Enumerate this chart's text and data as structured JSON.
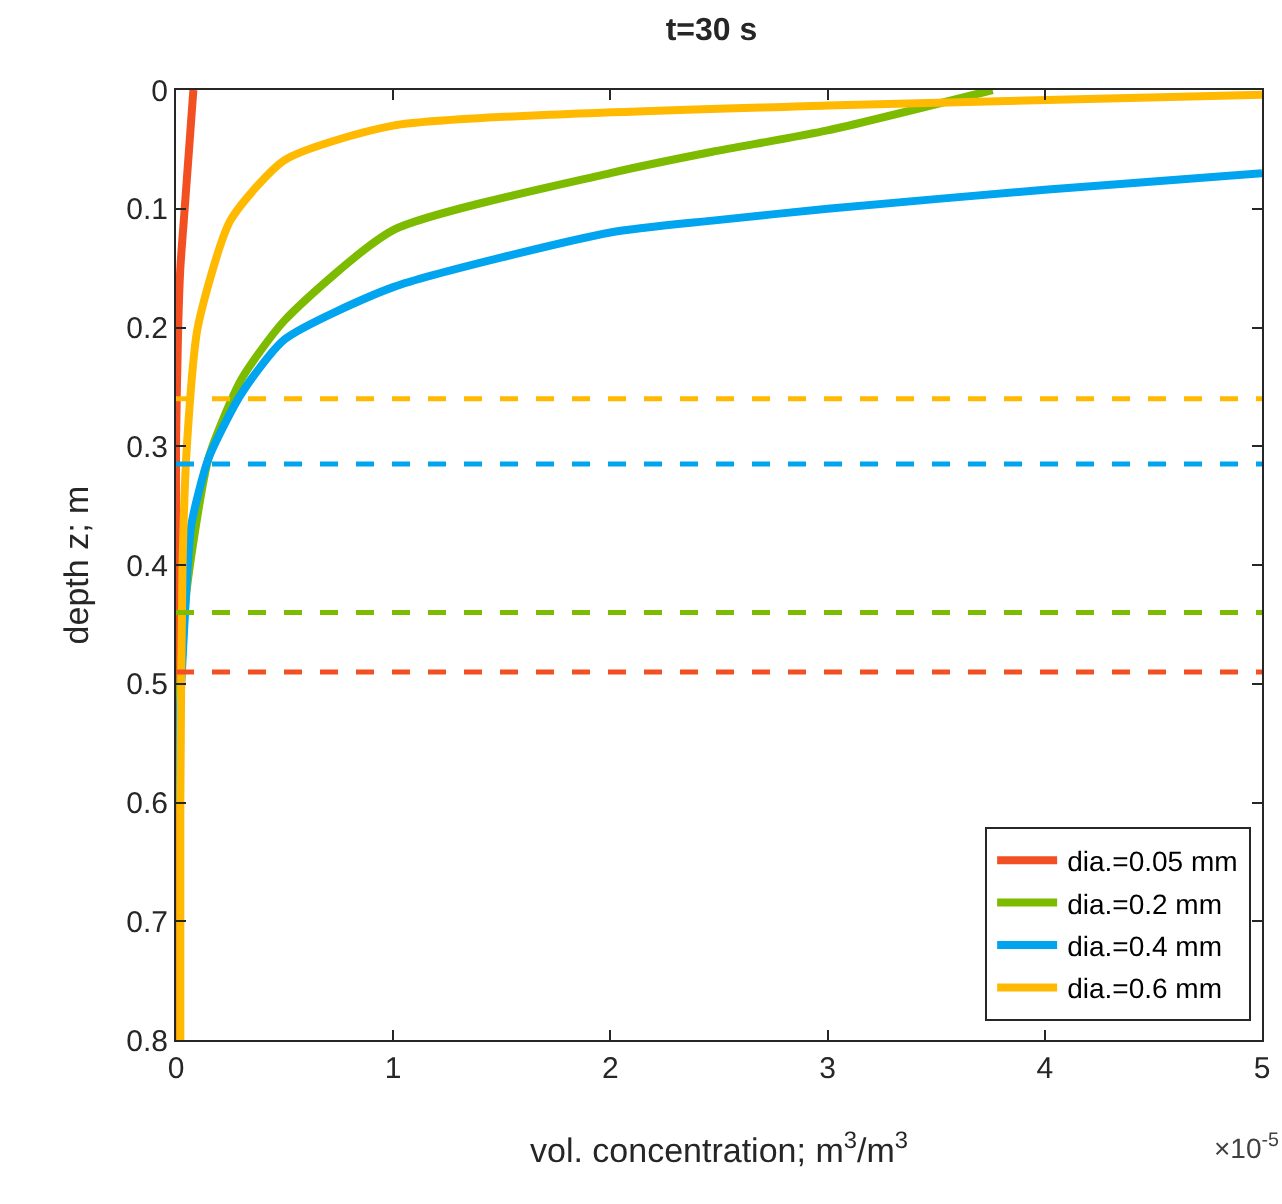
{
  "chart_data": {
    "type": "line",
    "title": "t=30 s",
    "xlabel": "vol. concentration; m$^{3}$/m$^{3}$",
    "ylabel": "depth z; m",
    "annotations": [
      "×10$^{-5}$"
    ],
    "xlim": [
      0,
      5
    ],
    "xticks": [
      0,
      1,
      2,
      3,
      4,
      5
    ],
    "ylim": [
      0.8,
      0
    ],
    "yticks": [
      0,
      0.1,
      0.2,
      0.3,
      0.4,
      0.5,
      0.6,
      0.7,
      0.8
    ],
    "grid": false,
    "legend": "bottom right",
    "marker": "none",
    "line_style": "solid",
    "series": [
      {
        "name": "dia.=0.05 mm",
        "color": "#f25022",
        "x": [
          0.08,
          0.06,
          0.04,
          0.02,
          0.01,
          0.0,
          0.0
        ],
        "values": [
          0,
          0.05,
          0.1,
          0.15,
          0.2,
          0.3,
          0.8
        ]
      },
      {
        "name": "dia.=0.2 mm",
        "color": "#7cbb00",
        "x": [
          3.76,
          3,
          2.47,
          2,
          1,
          0.5,
          0.3,
          0.15,
          0.05,
          0.02,
          0.0
        ],
        "values": [
          0,
          0.034,
          0.052,
          0.07,
          0.118,
          0.194,
          0.244,
          0.31,
          0.42,
          0.5,
          0.6
        ]
      },
      {
        "name": "dia.=0.4 mm",
        "color": "#00a4ef",
        "x": [
          5,
          4,
          3,
          2.47,
          2,
          1,
          0.5,
          0.3,
          0.15,
          0.07,
          0.03,
          0.01,
          0.0
        ],
        "values": [
          0.07,
          0.084,
          0.1,
          0.11,
          0.12,
          0.166,
          0.21,
          0.256,
          0.31,
          0.367,
          0.48,
          0.55,
          0.6
        ]
      },
      {
        "name": "dia.=0.6 mm",
        "color": "#ffb900",
        "x": [
          5,
          3,
          1,
          0.5,
          0.25,
          0.1,
          0.05,
          0.03,
          0.02,
          0.02
        ],
        "values": [
          0.004,
          0.013,
          0.03,
          0.059,
          0.11,
          0.2,
          0.3,
          0.4,
          0.6,
          0.8
        ]
      }
    ],
    "ref_lines": [
      {
        "axis": "y",
        "value": 0.26,
        "color": "#ffb900",
        "line_style": "dashed"
      },
      {
        "axis": "y",
        "value": 0.315,
        "color": "#00a4ef",
        "line_style": "dashed"
      },
      {
        "axis": "y",
        "value": 0.44,
        "color": "#7cbb00",
        "line_style": "dashed"
      },
      {
        "axis": "y",
        "value": 0.49,
        "color": "#f25022",
        "line_style": "dashed"
      }
    ]
  }
}
